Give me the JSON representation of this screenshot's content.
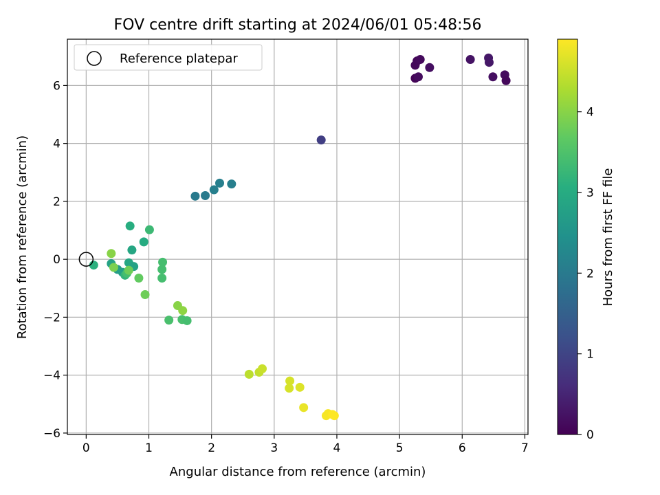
{
  "chart_data": {
    "type": "scatter",
    "title": "FOV centre drift starting at 2024/06/01 05:48:56",
    "xlabel": "Angular distance from reference (arcmin)",
    "ylabel": "Rotation from reference (arcmin)",
    "xlim": [
      -0.3,
      7.05
    ],
    "ylim": [
      -6.05,
      7.6
    ],
    "xticks": [
      "0",
      "1",
      "2",
      "3",
      "4",
      "5",
      "6",
      "7"
    ],
    "yticks": [
      "−6",
      "−4",
      "−2",
      "0",
      "2",
      "4",
      "6"
    ],
    "grid": true,
    "legend": {
      "position": "top-left",
      "label": "Reference platepar"
    },
    "reference_point": {
      "x": 0,
      "y": 0
    },
    "colorbar": {
      "label": "Hours from first FF file",
      "colormap": "viridis",
      "range": [
        0,
        4.9
      ],
      "ticks": [
        "0",
        "1",
        "2",
        "3",
        "4"
      ]
    },
    "points": [
      {
        "x": 5.25,
        "y": 6.25,
        "c": 0.05
      },
      {
        "x": 5.25,
        "y": 6.7,
        "c": 0.1
      },
      {
        "x": 5.28,
        "y": 6.85,
        "c": 0.1
      },
      {
        "x": 5.33,
        "y": 6.9,
        "c": 0.12
      },
      {
        "x": 5.3,
        "y": 6.3,
        "c": 0.15
      },
      {
        "x": 5.48,
        "y": 6.62,
        "c": 0.2
      },
      {
        "x": 6.13,
        "y": 6.9,
        "c": 0.25
      },
      {
        "x": 6.42,
        "y": 6.95,
        "c": 0.3
      },
      {
        "x": 6.43,
        "y": 6.8,
        "c": 0.3
      },
      {
        "x": 6.49,
        "y": 6.3,
        "c": 0.2
      },
      {
        "x": 6.68,
        "y": 6.37,
        "c": 0.15
      },
      {
        "x": 6.7,
        "y": 6.17,
        "c": 0.1
      },
      {
        "x": 3.75,
        "y": 4.12,
        "c": 0.9
      },
      {
        "x": 1.74,
        "y": 2.18,
        "c": 2.0
      },
      {
        "x": 1.9,
        "y": 2.2,
        "c": 2.0
      },
      {
        "x": 2.04,
        "y": 2.4,
        "c": 2.1
      },
      {
        "x": 2.13,
        "y": 2.63,
        "c": 2.1
      },
      {
        "x": 2.32,
        "y": 2.6,
        "c": 2.1
      },
      {
        "x": 0.7,
        "y": 1.15,
        "c": 3.05
      },
      {
        "x": 1.01,
        "y": 1.02,
        "c": 3.3
      },
      {
        "x": 0.92,
        "y": 0.6,
        "c": 3.0
      },
      {
        "x": 0.73,
        "y": 0.32,
        "c": 2.9
      },
      {
        "x": 0.12,
        "y": -0.2,
        "c": 3.1
      },
      {
        "x": 0.4,
        "y": -0.15,
        "c": 2.8
      },
      {
        "x": 0.5,
        "y": -0.35,
        "c": 2.7
      },
      {
        "x": 0.58,
        "y": -0.45,
        "c": 2.75
      },
      {
        "x": 0.68,
        "y": -0.12,
        "c": 2.9
      },
      {
        "x": 0.76,
        "y": -0.25,
        "c": 2.8
      },
      {
        "x": 0.62,
        "y": -0.55,
        "c": 3.2
      },
      {
        "x": 0.65,
        "y": -0.48,
        "c": 3.4
      },
      {
        "x": 0.4,
        "y": 0.2,
        "c": 4.0
      },
      {
        "x": 0.44,
        "y": -0.28,
        "c": 3.9
      },
      {
        "x": 0.68,
        "y": -0.38,
        "c": 3.8
      },
      {
        "x": 0.84,
        "y": -0.65,
        "c": 3.7
      },
      {
        "x": 0.94,
        "y": -1.22,
        "c": 3.8
      },
      {
        "x": 1.22,
        "y": -0.1,
        "c": 3.4
      },
      {
        "x": 1.21,
        "y": -0.35,
        "c": 3.4
      },
      {
        "x": 1.21,
        "y": -0.65,
        "c": 3.4
      },
      {
        "x": 1.32,
        "y": -2.1,
        "c": 3.45
      },
      {
        "x": 1.46,
        "y": -1.6,
        "c": 4.0
      },
      {
        "x": 1.54,
        "y": -1.77,
        "c": 4.05
      },
      {
        "x": 1.53,
        "y": -2.08,
        "c": 3.45
      },
      {
        "x": 1.61,
        "y": -2.12,
        "c": 3.4
      },
      {
        "x": 2.6,
        "y": -3.97,
        "c": 4.4
      },
      {
        "x": 2.76,
        "y": -3.9,
        "c": 4.45
      },
      {
        "x": 2.81,
        "y": -3.78,
        "c": 4.5
      },
      {
        "x": 3.25,
        "y": -4.2,
        "c": 4.6
      },
      {
        "x": 3.24,
        "y": -4.45,
        "c": 4.6
      },
      {
        "x": 3.41,
        "y": -4.42,
        "c": 4.65
      },
      {
        "x": 3.47,
        "y": -5.12,
        "c": 4.75
      },
      {
        "x": 3.83,
        "y": -5.4,
        "c": 4.85
      },
      {
        "x": 3.86,
        "y": -5.33,
        "c": 4.85
      },
      {
        "x": 3.93,
        "y": -5.36,
        "c": 4.9
      },
      {
        "x": 3.96,
        "y": -5.4,
        "c": 4.9
      }
    ]
  }
}
